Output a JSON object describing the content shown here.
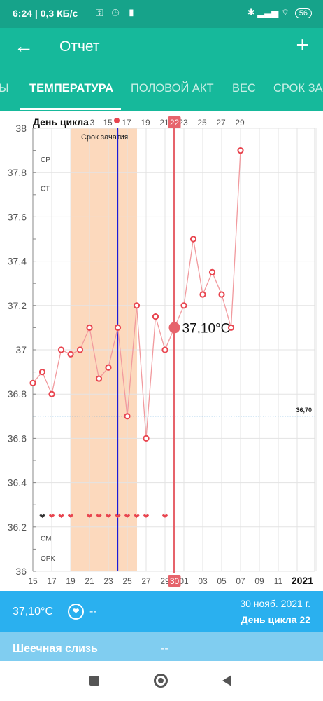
{
  "status": {
    "time_speed": "6:24 | 0,3 КБ/с",
    "battery": "56"
  },
  "appbar": {
    "title": "Отчет",
    "back_icon": "arrow-left-icon",
    "add_icon": "plus-icon"
  },
  "tabs": [
    "Ы",
    "ТЕМПЕРАТУРА",
    "ПОЛОВОЙ АКТ",
    "ВЕС",
    "СРОК ЗА"
  ],
  "chart_data": {
    "type": "line",
    "title": "День цикла",
    "unit": "°C",
    "ylim": [
      36,
      38
    ],
    "y_ticks": [
      "38",
      "37.8",
      "37.6",
      "37.4",
      "37.2",
      "37",
      "36.8",
      "36.6",
      "36.4",
      "36.2",
      "36"
    ],
    "cycle_day_labels": [
      "3",
      "15",
      "17",
      "19",
      "21",
      "23",
      "25",
      "27",
      "29"
    ],
    "date_tick_labels": [
      "15",
      "17",
      "19",
      "21",
      "23",
      "25",
      "27",
      "29",
      "01",
      "03",
      "05",
      "07",
      "09",
      "11"
    ],
    "year_label": "2021",
    "selected_cycle_day": "22",
    "selected_date": "30",
    "selected_value_label": "37,10°C",
    "fertile_window_label": "Срок зачатия",
    "coverline_label": "36,70",
    "coverline": 36.7,
    "row_labels": [
      "СР",
      "СТ",
      "СМ",
      "ОРК"
    ],
    "series": [
      {
        "dates": [
          "15.11",
          "16.11",
          "17.11",
          "18.11",
          "19.11",
          "20.11",
          "21.11",
          "22.11",
          "23.11",
          "24.11",
          "25.11",
          "26.11",
          "27.11",
          "28.11",
          "29.11",
          "30.11",
          "01.12",
          "02.12",
          "03.12",
          "04.12",
          "05.12",
          "06.12",
          "07.12",
          "08.12"
        ],
        "values": [
          36.85,
          36.9,
          36.8,
          37.0,
          36.98,
          37.0,
          37.1,
          36.87,
          36.92,
          37.1,
          36.7,
          37.2,
          36.6,
          37.15,
          37.0,
          37.1,
          37.2,
          37.5,
          37.25,
          37.35,
          37.25,
          37.1,
          37.9,
          null
        ]
      }
    ],
    "intercourse_days": [
      "16.11",
      "17.11",
      "18.11",
      "19.11",
      "21.11",
      "22.11",
      "23.11",
      "24.11",
      "25.11",
      "26.11",
      "27.11",
      "29.11"
    ],
    "fertile_window": [
      "19.11",
      "26.11"
    ],
    "ovulation_date": "24.11"
  },
  "info": {
    "temperature": "37,10°C",
    "heart_icon": "heart-circle-icon",
    "intercourse": "--",
    "date": "30 нояб. 2021 г.",
    "cycle_day": "День цикла 22"
  },
  "mucus": {
    "label": "Шеечная слизь",
    "value": "--"
  },
  "navbar": {
    "recents": "square-icon",
    "home": "circle-icon",
    "back": "triangle-back-icon"
  },
  "colors": {
    "status": "#16a38a",
    "primary": "#16b99b",
    "info": "#2ab0ef",
    "mucus": "#80cdf0",
    "line": "#f19a9e",
    "marker": "#e8454f",
    "selected": "#e6636b",
    "fertile": "#fcd9bd",
    "ovulation": "#1b1bd8",
    "coverline": "#66a9dd"
  }
}
